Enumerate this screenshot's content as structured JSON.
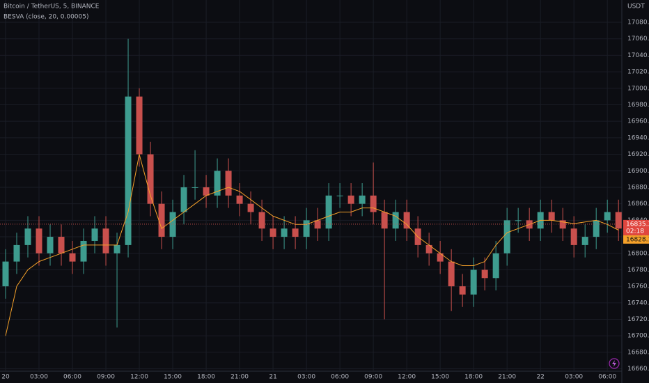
{
  "chart_data": {
    "type": "candlestick",
    "title": "Bitcoin / TetherUS, 5, BINANCE",
    "y_axis_label": "USDT",
    "up_color": "#3e9c8f",
    "down_color": "#c9504d",
    "grid": true,
    "xlim": [
      -0.5,
      55.3
    ],
    "ylim": [
      16658,
      17107
    ],
    "xticks": [
      {
        "value": 0,
        "label": "20"
      },
      {
        "value": 3,
        "label": "03:00"
      },
      {
        "value": 6,
        "label": "06:00"
      },
      {
        "value": 9,
        "label": "09:00"
      },
      {
        "value": 12,
        "label": "12:00"
      },
      {
        "value": 15,
        "label": "15:00"
      },
      {
        "value": 18,
        "label": "18:00"
      },
      {
        "value": 21,
        "label": "21:00"
      },
      {
        "value": 24,
        "label": "21"
      },
      {
        "value": 27,
        "label": "03:00"
      },
      {
        "value": 30,
        "label": "06:00"
      },
      {
        "value": 33,
        "label": "09:00"
      },
      {
        "value": 36,
        "label": "12:00"
      },
      {
        "value": 39,
        "label": "15:00"
      },
      {
        "value": 42,
        "label": "18:00"
      },
      {
        "value": 45,
        "label": "21:00"
      },
      {
        "value": 48,
        "label": "22"
      },
      {
        "value": 51,
        "label": "03:00"
      },
      {
        "value": 54,
        "label": "06:00"
      }
    ],
    "yticks": [
      {
        "value": 16660,
        "label": "16660.00"
      },
      {
        "value": 16680,
        "label": "16680.00"
      },
      {
        "value": 16700,
        "label": "16700.00"
      },
      {
        "value": 16720,
        "label": "16720.00"
      },
      {
        "value": 16740,
        "label": "16740.00"
      },
      {
        "value": 16760,
        "label": "16760.00"
      },
      {
        "value": 16780,
        "label": "16780.00"
      },
      {
        "value": 16800,
        "label": "16800.00"
      },
      {
        "value": 16820,
        "label": "16820.00"
      },
      {
        "value": 16840,
        "label": "16840.00"
      },
      {
        "value": 16860,
        "label": "16860.00"
      },
      {
        "value": 16880,
        "label": "16880.00"
      },
      {
        "value": 16900,
        "label": "16900.00"
      },
      {
        "value": 16920,
        "label": "16920.00"
      },
      {
        "value": 16940,
        "label": "16940.00"
      },
      {
        "value": 16960,
        "label": "16960.00"
      },
      {
        "value": 16980,
        "label": "16980.00"
      },
      {
        "value": 17000,
        "label": "17000.00"
      },
      {
        "value": 17020,
        "label": "17020.00"
      },
      {
        "value": 17040,
        "label": "17040.00"
      },
      {
        "value": 17060,
        "label": "17060.00"
      },
      {
        "value": 17080,
        "label": "17080.00"
      }
    ],
    "x": [
      0,
      1,
      2,
      3,
      4,
      5,
      6,
      7,
      8,
      9,
      10,
      11,
      12,
      13,
      14,
      15,
      16,
      17,
      18,
      19,
      20,
      21,
      22,
      23,
      24,
      25,
      26,
      27,
      28,
      29,
      30,
      31,
      32,
      33,
      34,
      35,
      36,
      37,
      38,
      39,
      40,
      41,
      42,
      43,
      44,
      45,
      46,
      47,
      48,
      49,
      50,
      51,
      52,
      53,
      54,
      55
    ],
    "open": [
      16760,
      16790,
      16810,
      16830,
      16800,
      16820,
      16800,
      16790,
      16815,
      16830,
      16800,
      16810,
      16990,
      16920,
      16860,
      16820,
      16850,
      16880,
      16880,
      16870,
      16900,
      16870,
      16860,
      16850,
      16830,
      16820,
      16830,
      16820,
      16840,
      16830,
      16870,
      16870,
      16860,
      16870,
      16850,
      16830,
      16850,
      16830,
      16810,
      16800,
      16790,
      16760,
      16750,
      16780,
      16770,
      16800,
      16840,
      16840,
      16830,
      16850,
      16840,
      16830,
      16810,
      16820,
      16840,
      16850
    ],
    "high": [
      16805,
      16825,
      16845,
      16845,
      16835,
      16835,
      16815,
      16830,
      16845,
      16845,
      16825,
      17060,
      17000,
      16935,
      16875,
      16865,
      16895,
      16925,
      16895,
      16915,
      16915,
      16885,
      16875,
      16865,
      16845,
      16845,
      16845,
      16855,
      16855,
      16885,
      16885,
      16885,
      16885,
      16910,
      16865,
      16865,
      16865,
      16845,
      16825,
      16815,
      16805,
      16775,
      16795,
      16795,
      16815,
      16855,
      16855,
      16855,
      16865,
      16865,
      16855,
      16845,
      16835,
      16855,
      16865,
      16865
    ],
    "low": [
      16745,
      16775,
      16795,
      16785,
      16785,
      16785,
      16775,
      16775,
      16800,
      16785,
      16710,
      16795,
      16905,
      16845,
      16805,
      16805,
      16835,
      16865,
      16855,
      16855,
      16855,
      16845,
      16835,
      16815,
      16805,
      16805,
      16805,
      16805,
      16815,
      16815,
      16855,
      16845,
      16845,
      16835,
      16720,
      16815,
      16815,
      16795,
      16785,
      16775,
      16730,
      16735,
      16735,
      16755,
      16755,
      16785,
      16825,
      16815,
      16815,
      16825,
      16815,
      16795,
      16795,
      16805,
      16825,
      16815
    ],
    "close": [
      16790,
      16810,
      16830,
      16800,
      16820,
      16800,
      16790,
      16815,
      16830,
      16800,
      16810,
      16990,
      16920,
      16860,
      16820,
      16850,
      16880,
      16880,
      16870,
      16900,
      16870,
      16860,
      16850,
      16830,
      16820,
      16830,
      16820,
      16840,
      16830,
      16870,
      16870,
      16860,
      16870,
      16850,
      16830,
      16850,
      16830,
      16810,
      16800,
      16790,
      16760,
      16750,
      16780,
      16770,
      16800,
      16840,
      16840,
      16830,
      16850,
      16840,
      16830,
      16810,
      16820,
      16840,
      16850,
      16830
    ],
    "indicator": {
      "name": "BESVA (close, 20, 0.00005)",
      "color": "#f5a12a",
      "values": [
        16700,
        16760,
        16780,
        16790,
        16795,
        16800,
        16805,
        16810,
        16810,
        16810,
        16810,
        16850,
        16920,
        16870,
        16830,
        16840,
        16850,
        16860,
        16870,
        16875,
        16880,
        16875,
        16865,
        16855,
        16845,
        16840,
        16835,
        16835,
        16840,
        16845,
        16850,
        16850,
        16855,
        16855,
        16850,
        16845,
        16835,
        16820,
        16810,
        16800,
        16790,
        16785,
        16785,
        16790,
        16810,
        16825,
        16830,
        16835,
        16840,
        16840,
        16838,
        16836,
        16838,
        16840,
        16835,
        16828.1
      ],
      "last_label": "16828.10"
    },
    "last_price": 16835.34,
    "last_price_label": "16835.34",
    "countdown": "02:18"
  }
}
